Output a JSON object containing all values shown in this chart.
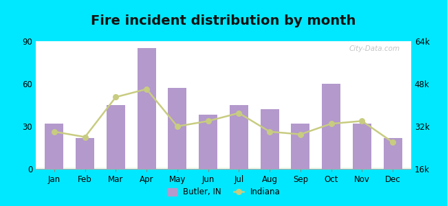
{
  "title": "Fire incident distribution by month",
  "months": [
    "Jan",
    "Feb",
    "Mar",
    "Apr",
    "May",
    "Jun",
    "Jul",
    "Aug",
    "Sep",
    "Oct",
    "Nov",
    "Dec"
  ],
  "butler_values": [
    32,
    22,
    45,
    85,
    57,
    38,
    45,
    42,
    32,
    60,
    32,
    22
  ],
  "indiana_values": [
    30000,
    28000,
    43000,
    46000,
    32000,
    34000,
    37000,
    30000,
    29000,
    33000,
    34000,
    26000
  ],
  "bar_color": "#b399cc",
  "line_color": "#c8cc80",
  "ylim_left": [
    0,
    90
  ],
  "ylim_right": [
    16000,
    64000
  ],
  "yticks_left": [
    0,
    30,
    60,
    90
  ],
  "yticks_right": [
    16000,
    32000,
    48000,
    64000
  ],
  "ytick_labels_right": [
    "16k",
    "32k",
    "48k",
    "64k"
  ],
  "outer_bg": "#00e8ff",
  "title_fontsize": 14,
  "legend_butler_label": "Butler, IN",
  "legend_indiana_label": "Indiana",
  "watermark": "City-Data.com"
}
